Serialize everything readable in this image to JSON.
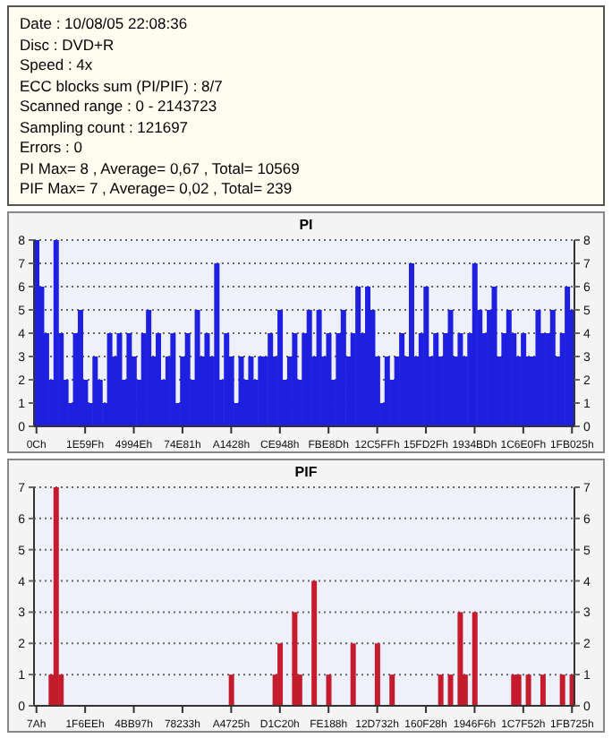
{
  "chart_data": [
    {
      "type": "other",
      "annotations": [
        "Date : 10/08/05 22:08:36",
        "Disc : DVD+R",
        "Speed : 4x",
        "ECC blocks sum (PI/PIF) : 8/7",
        "Scanned range : 0 - 2143723",
        "Sampling count : 121697",
        "Errors : 0",
        "PI Max= 8 , Average= 0,67 , Total= 10569",
        "PIF Max= 7 , Average= 0,02 , Total= 239"
      ]
    },
    {
      "type": "bar",
      "title": "PI",
      "color": "#1f1fe0",
      "grid": "y",
      "ylim": [
        0,
        8
      ],
      "yticks": [
        0,
        1,
        2,
        3,
        4,
        5,
        6,
        7,
        8
      ],
      "y2lim": [
        0,
        8
      ],
      "y2ticks": [
        0,
        1,
        2,
        3,
        4,
        5,
        6,
        7,
        8
      ],
      "categories": [
        "0Ch",
        null,
        null,
        null,
        null,
        null,
        null,
        null,
        null,
        null,
        "1E59Fh",
        null,
        null,
        null,
        null,
        null,
        null,
        null,
        null,
        null,
        "4994Eh",
        null,
        null,
        null,
        null,
        null,
        null,
        null,
        null,
        null,
        "74E81h",
        null,
        null,
        null,
        null,
        null,
        null,
        null,
        null,
        null,
        "A1428h",
        null,
        null,
        null,
        null,
        null,
        null,
        null,
        null,
        null,
        "CE948h",
        null,
        null,
        null,
        null,
        null,
        null,
        null,
        null,
        null,
        "FBE8Dh",
        null,
        null,
        null,
        null,
        null,
        null,
        null,
        null,
        null,
        "12C5FFh",
        null,
        null,
        null,
        null,
        null,
        null,
        null,
        null,
        null,
        "15FD2Fh",
        null,
        null,
        null,
        null,
        null,
        null,
        null,
        null,
        null,
        "1934BDh",
        null,
        null,
        null,
        null,
        null,
        null,
        null,
        null,
        null,
        "1C6E0Fh",
        null,
        null,
        null,
        null,
        null,
        null,
        null,
        null,
        null,
        "1FB025h"
      ],
      "values": [
        8,
        6,
        4,
        2,
        8,
        4,
        2,
        1,
        4,
        5,
        2,
        1,
        3,
        2,
        1,
        4,
        3,
        4,
        2,
        4,
        3,
        2,
        4,
        5,
        3,
        4,
        2,
        3,
        4,
        1,
        3,
        4,
        2,
        5,
        3,
        4,
        3,
        7,
        2,
        4,
        3,
        1,
        3,
        2,
        3,
        2,
        3,
        3,
        4,
        3,
        5,
        2,
        3,
        4,
        2,
        4,
        5,
        3,
        5,
        3,
        4,
        2,
        4,
        5,
        3,
        4,
        6,
        4,
        6,
        5,
        3,
        1,
        3,
        2,
        3,
        4,
        3,
        7,
        3,
        4,
        6,
        3,
        4,
        3,
        4,
        5,
        3,
        4,
        3,
        4,
        7,
        5,
        4,
        5,
        6,
        3,
        4,
        5,
        4,
        3,
        4,
        3,
        3,
        5,
        4,
        4,
        5,
        3,
        4,
        6,
        5
      ]
    },
    {
      "type": "bar",
      "title": "PIF",
      "color": "#c41c2c",
      "grid": "y",
      "ylim": [
        0,
        7
      ],
      "yticks": [
        0,
        1,
        2,
        3,
        4,
        5,
        6,
        7
      ],
      "y2lim": [
        0,
        7
      ],
      "y2ticks": [
        0,
        1,
        2,
        3,
        4,
        5,
        6,
        7
      ],
      "categories": [
        "7Ah",
        null,
        null,
        null,
        null,
        null,
        null,
        null,
        null,
        null,
        "1F6EEh",
        null,
        null,
        null,
        null,
        null,
        null,
        null,
        null,
        null,
        "4BB97h",
        null,
        null,
        null,
        null,
        null,
        null,
        null,
        null,
        null,
        "78233h",
        null,
        null,
        null,
        null,
        null,
        null,
        null,
        null,
        null,
        "A4725h",
        null,
        null,
        null,
        null,
        null,
        null,
        null,
        null,
        null,
        "D1C20h",
        null,
        null,
        null,
        null,
        null,
        null,
        null,
        null,
        null,
        "FE188h",
        null,
        null,
        null,
        null,
        null,
        null,
        null,
        null,
        null,
        "12D732h",
        null,
        null,
        null,
        null,
        null,
        null,
        null,
        null,
        null,
        "160F28h",
        null,
        null,
        null,
        null,
        null,
        null,
        null,
        null,
        null,
        "1946F6h",
        null,
        null,
        null,
        null,
        null,
        null,
        null,
        null,
        null,
        "1C7F52h",
        null,
        null,
        null,
        null,
        null,
        null,
        null,
        null,
        null,
        "1FB725h"
      ],
      "values": [
        0,
        0,
        0,
        1,
        7,
        1,
        0,
        0,
        0,
        0,
        0,
        0,
        0,
        0,
        0,
        0,
        0,
        0,
        0,
        0,
        0,
        0,
        0,
        0,
        0,
        0,
        0,
        0,
        0,
        0,
        0,
        0,
        0,
        0,
        0,
        0,
        0,
        0,
        0,
        0,
        1,
        0,
        0,
        0,
        0,
        0,
        0,
        0,
        0,
        1,
        2,
        0,
        0,
        3,
        1,
        0,
        0,
        4,
        0,
        0,
        1,
        0,
        0,
        0,
        0,
        2,
        0,
        0,
        0,
        0,
        2,
        0,
        0,
        1,
        0,
        0,
        0,
        0,
        0,
        0,
        0,
        0,
        0,
        1,
        0,
        1,
        0,
        3,
        1,
        0,
        3,
        0,
        0,
        0,
        0,
        0,
        0,
        0,
        1,
        1,
        0,
        1,
        0,
        0,
        1,
        0,
        0,
        0,
        1,
        0,
        1
      ]
    }
  ]
}
